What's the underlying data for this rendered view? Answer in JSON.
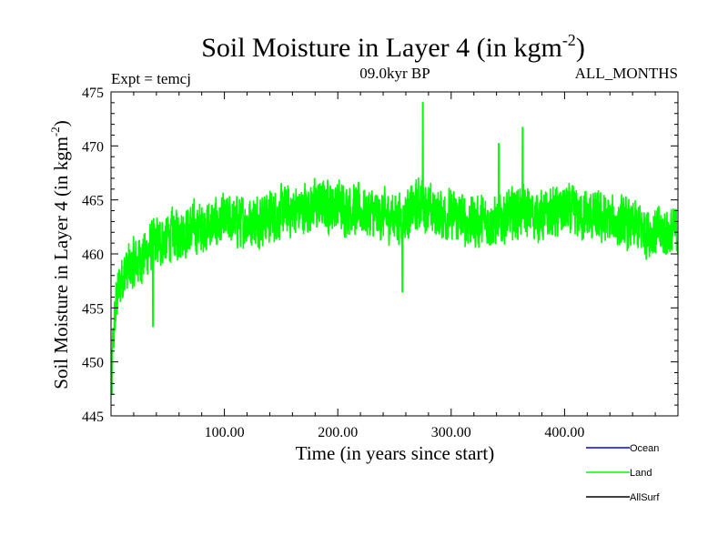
{
  "chart_data": {
    "type": "line",
    "title_main": "Soil Moisture in Layer 4 (in kgm",
    "title_sup": "-2",
    "title_close": ")",
    "subtitle_left": "Expt = temcj",
    "subtitle_center": "09.0kyr BP",
    "subtitle_right": "ALL_MONTHS",
    "ylabel_main": "Soil Moisture in Layer 4 (in kgm",
    "ylabel_sup": "-2",
    "ylabel_close": ")",
    "xlabel": "Time (in years since start)",
    "xlim": [
      0,
      500
    ],
    "ylim": [
      445,
      475
    ],
    "x_ticks": [
      100,
      200,
      300,
      400
    ],
    "x_tick_labels": [
      "100.00",
      "200.00",
      "300.00",
      "400.00"
    ],
    "y_ticks": [
      445,
      450,
      455,
      460,
      465,
      470,
      475
    ],
    "y_tick_labels": [
      "445",
      "450",
      "455",
      "460",
      "465",
      "470",
      "475"
    ],
    "legend": [
      {
        "name": "Ocean",
        "color": "#0000ff"
      },
      {
        "name": "Land",
        "color": "#00ff00"
      },
      {
        "name": "AllSurf",
        "color": "#000000"
      }
    ],
    "series": [
      {
        "name": "Land",
        "color": "#00ff00",
        "description_points": {
          "x": [
            0,
            2,
            5,
            10,
            20,
            30,
            40,
            60,
            80,
            100,
            120,
            140,
            160,
            180,
            200,
            220,
            240,
            260,
            275,
            280,
            300,
            320,
            340,
            360,
            380,
            400,
            420,
            440,
            460,
            480,
            500
          ],
          "y": [
            448,
            452,
            456,
            458,
            459,
            460,
            461,
            462,
            462.5,
            463,
            463,
            463.5,
            464,
            464.5,
            464.5,
            464,
            463.5,
            463.5,
            465,
            464,
            463.5,
            463,
            463,
            464,
            463.5,
            464,
            463.5,
            463,
            462.5,
            462,
            462
          ],
          "noise_amplitude": 3.2,
          "peaks": [
            {
              "x": 275,
              "y": 474
            },
            {
              "x": 363,
              "y": 471.7
            },
            {
              "x": 342,
              "y": 470.2
            }
          ],
          "troughs": [
            {
              "x": 1,
              "y": 447
            },
            {
              "x": 37,
              "y": 453.3
            },
            {
              "x": 257,
              "y": 456.5
            }
          ]
        }
      }
    ]
  }
}
